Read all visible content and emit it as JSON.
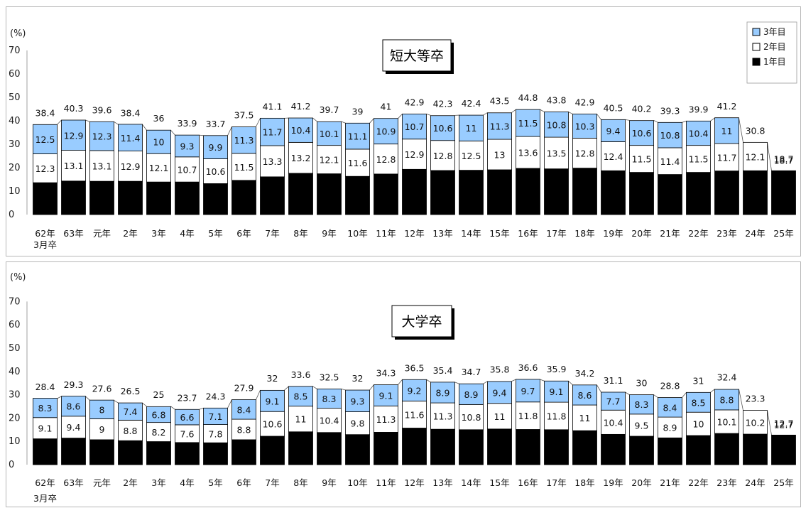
{
  "chart_data": [
    {
      "type": "bar",
      "stacked": true,
      "title": "短大等卒",
      "unit_label": "(%)",
      "ylim": [
        0,
        70
      ],
      "y_ticks": [
        0,
        10,
        20,
        30,
        40,
        50,
        60,
        70
      ],
      "grid": false,
      "legend_position": "top-right",
      "categories": [
        "62年",
        "63年",
        "元年",
        "2年",
        "3年",
        "4年",
        "5年",
        "6年",
        "7年",
        "8年",
        "9年",
        "10年",
        "11年",
        "12年",
        "13年",
        "14年",
        "15年",
        "16年",
        "17年",
        "18年",
        "19年",
        "20年",
        "21年",
        "22年",
        "23年",
        "24年",
        "25年"
      ],
      "category_sublabel": "3月卒",
      "totals": [
        38.4,
        40.3,
        39.6,
        38.4,
        36.0,
        33.9,
        33.7,
        37.5,
        41.1,
        41.2,
        39.7,
        39.0,
        41.0,
        42.9,
        42.3,
        42.4,
        43.5,
        44.8,
        43.8,
        42.9,
        40.5,
        40.2,
        39.3,
        39.9,
        41.2,
        30.8,
        18.7
      ],
      "series": [
        {
          "name": "1年目",
          "color": "#000000",
          "values": [
            13.6,
            14.3,
            14.2,
            14.2,
            13.9,
            13.9,
            13.2,
            14.6,
            16.1,
            17.6,
            17.4,
            16.3,
            17.3,
            19.3,
            18.8,
            18.9,
            19.1,
            19.7,
            19.5,
            19.8,
            18.7,
            18.0,
            17.1,
            18.0,
            18.6,
            18.7,
            18.7
          ]
        },
        {
          "name": "2年目",
          "color": "#ffffff",
          "values": [
            12.3,
            13.1,
            13.1,
            12.9,
            12.1,
            10.7,
            10.6,
            11.5,
            13.3,
            13.2,
            12.1,
            11.6,
            12.8,
            12.9,
            12.8,
            12.5,
            13.0,
            13.6,
            13.5,
            12.8,
            12.4,
            11.5,
            11.4,
            11.5,
            11.7,
            12.1,
            null
          ]
        },
        {
          "name": "3年目",
          "color": "#99ccff",
          "values": [
            12.5,
            12.9,
            12.3,
            11.4,
            10.0,
            9.3,
            9.9,
            11.3,
            11.7,
            10.4,
            10.1,
            11.1,
            10.9,
            10.7,
            10.6,
            11.0,
            11.3,
            11.5,
            10.8,
            10.3,
            9.4,
            10.6,
            10.8,
            10.4,
            11.0,
            null,
            null
          ]
        }
      ]
    },
    {
      "type": "bar",
      "stacked": true,
      "title": "大学卒",
      "unit_label": "(%)",
      "ylim": [
        0,
        70
      ],
      "y_ticks": [
        0,
        10,
        20,
        30,
        40,
        50,
        60,
        70
      ],
      "grid": false,
      "categories": [
        "62年",
        "63年",
        "元年",
        "2年",
        "3年",
        "4年",
        "5年",
        "6年",
        "7年",
        "8年",
        "9年",
        "10年",
        "11年",
        "12年",
        "13年",
        "14年",
        "15年",
        "16年",
        "17年",
        "18年",
        "19年",
        "20年",
        "21年",
        "22年",
        "23年",
        "24年",
        "25年"
      ],
      "category_sublabel": "3月卒",
      "totals": [
        28.4,
        29.3,
        27.6,
        26.5,
        25.0,
        23.7,
        24.3,
        27.9,
        32.0,
        33.6,
        32.5,
        32.0,
        34.3,
        36.5,
        35.4,
        34.7,
        35.8,
        36.6,
        35.9,
        34.2,
        31.1,
        30.0,
        28.8,
        31.0,
        32.4,
        23.3,
        12.7
      ],
      "series": [
        {
          "name": "1年目",
          "color": "#000000",
          "values": [
            11.1,
            11.4,
            10.7,
            10.3,
            9.9,
            9.5,
            9.4,
            10.7,
            12.2,
            14.1,
            13.8,
            12.9,
            13.9,
            15.7,
            15.2,
            15.0,
            15.3,
            15.1,
            15.0,
            14.6,
            13.0,
            12.2,
            11.5,
            12.5,
            13.4,
            13.1,
            12.7
          ]
        },
        {
          "name": "2年目",
          "color": "#ffffff",
          "values": [
            9.1,
            9.4,
            9.0,
            8.8,
            8.2,
            7.6,
            7.8,
            8.8,
            10.6,
            11.0,
            10.4,
            9.8,
            11.3,
            11.6,
            11.3,
            10.8,
            11.0,
            11.8,
            11.8,
            11.0,
            10.4,
            9.5,
            8.9,
            10.0,
            10.1,
            10.2,
            null
          ]
        },
        {
          "name": "3年目",
          "color": "#99ccff",
          "values": [
            8.3,
            8.6,
            8.0,
            7.4,
            6.8,
            6.6,
            7.1,
            8.4,
            9.1,
            8.5,
            8.3,
            9.3,
            9.1,
            9.2,
            8.9,
            8.9,
            9.4,
            9.7,
            9.1,
            8.6,
            7.7,
            8.3,
            8.4,
            8.5,
            8.8,
            null,
            null
          ]
        }
      ]
    }
  ]
}
